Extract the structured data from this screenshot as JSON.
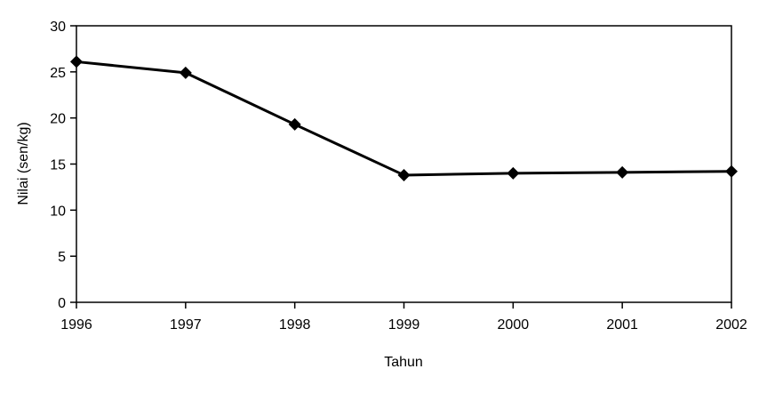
{
  "chart_data": {
    "type": "line",
    "title": "",
    "xlabel": "Tahun",
    "ylabel": "Nilai (sen/kg)",
    "x": [
      "1996",
      "1997",
      "1998",
      "1999",
      "2000",
      "2001",
      "2002"
    ],
    "series": [
      {
        "values": [
          26.1,
          24.9,
          19.3,
          13.8,
          14.0,
          14.1,
          14.2
        ],
        "color": "#000000",
        "marker": "diamond"
      }
    ],
    "ylim": [
      0,
      30
    ],
    "yticks": [
      0,
      5,
      10,
      15,
      20,
      25,
      30
    ],
    "grid": false,
    "legend": "none"
  }
}
